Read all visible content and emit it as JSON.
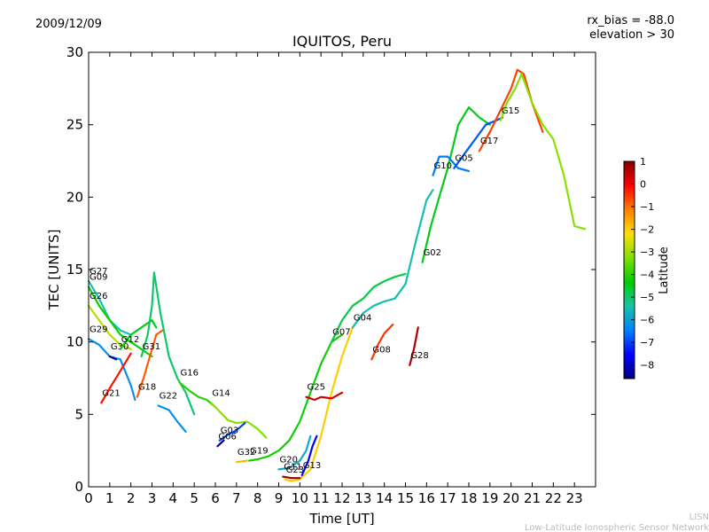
{
  "header": {
    "date": "2009/12/09",
    "rx_bias": "rx_bias = -88.0",
    "elevation": "elevation > 30"
  },
  "footer": {
    "line1": "LISN",
    "line2": "Low-Latitude Ionospheric Sensor Network"
  },
  "chart_data": {
    "type": "scatter",
    "title": "IQUITOS, Peru",
    "xlabel": "Time [UT]",
    "ylabel": "TEC [UNITS]",
    "xlim": [
      0,
      24
    ],
    "ylim": [
      0,
      30
    ],
    "xticks": [
      "0",
      "1",
      "2",
      "3",
      "4",
      "5",
      "6",
      "7",
      "8",
      "9",
      "10",
      "11",
      "12",
      "13",
      "14",
      "15",
      "16",
      "17",
      "18",
      "19",
      "20",
      "21",
      "22",
      "23"
    ],
    "yticks": [
      "0",
      "5",
      "10",
      "15",
      "20",
      "25",
      "30"
    ],
    "colorbar": {
      "label": "Latitude",
      "range": [
        -8.6,
        1.0
      ],
      "ticks": [
        "1",
        "0",
        "−1",
        "−2",
        "−3",
        "−4",
        "−5",
        "−6",
        "−7",
        "−8"
      ],
      "tick_values": [
        1,
        0,
        -1,
        -2,
        -3,
        -4,
        -5,
        -6,
        -7,
        -8
      ],
      "colors": [
        "#00007f",
        "#0000ff",
        "#0080ff",
        "#17c4a8",
        "#00cc00",
        "#7fe000",
        "#ffdd00",
        "#ff8000",
        "#ff0000",
        "#7f0000"
      ]
    },
    "series": [
      {
        "name": "G27",
        "lat": -5.5,
        "points": [
          [
            0,
            14.2
          ],
          [
            0.5,
            13
          ],
          [
            1,
            11.5
          ],
          [
            1.5,
            10.8
          ],
          [
            2,
            10.5
          ]
        ]
      },
      {
        "name": "G09",
        "lat": -4.2,
        "points": [
          [
            0,
            13.8
          ],
          [
            0.5,
            12.5
          ],
          [
            1,
            11.5
          ],
          [
            1.5,
            10.5
          ],
          [
            2,
            10
          ],
          [
            2.5,
            9.5
          ],
          [
            3,
            9
          ]
        ]
      },
      {
        "name": "G26",
        "lat": -2.8,
        "points": [
          [
            0,
            12.5
          ],
          [
            0.5,
            11.5
          ],
          [
            1,
            10.5
          ],
          [
            1.5,
            9.8
          ],
          [
            2,
            9.5
          ]
        ]
      },
      {
        "name": "G29",
        "lat": -6.2,
        "points": [
          [
            0,
            10.2
          ],
          [
            0.5,
            9.8
          ],
          [
            1,
            9
          ],
          [
            1.5,
            8.8
          ],
          [
            2,
            7
          ],
          [
            2.2,
            6
          ]
        ]
      },
      {
        "name": "G30",
        "lat": -8.3,
        "points": [
          [
            1,
            9
          ],
          [
            1.3,
            8.8
          ]
        ]
      },
      {
        "name": "G12",
        "lat": -4.5,
        "points": [
          [
            1.5,
            9.5
          ],
          [
            2,
            10.5
          ],
          [
            2.5,
            11
          ],
          [
            3,
            11.5
          ],
          [
            3.2,
            11
          ]
        ]
      },
      {
        "name": "G21",
        "lat": -0.2,
        "points": [
          [
            0.6,
            5.8
          ],
          [
            1,
            6.8
          ],
          [
            1.5,
            8
          ],
          [
            2,
            9.2
          ]
        ]
      },
      {
        "name": "G18",
        "lat": -0.8,
        "points": [
          [
            2.3,
            6.2
          ],
          [
            2.6,
            7.5
          ],
          [
            2.9,
            9
          ],
          [
            3.2,
            10.5
          ],
          [
            3.5,
            10.8
          ]
        ]
      },
      {
        "name": "G31",
        "lat": -5.0,
        "points": [
          [
            2.5,
            9
          ],
          [
            2.8,
            10.5
          ],
          [
            3,
            12.5
          ],
          [
            3.1,
            14.8
          ],
          [
            3.4,
            12
          ],
          [
            3.8,
            9
          ],
          [
            4.2,
            7.5
          ],
          [
            4.6,
            6.5
          ],
          [
            5,
            5
          ]
        ]
      },
      {
        "name": "G22",
        "lat": -6.2,
        "points": [
          [
            3.3,
            5.6
          ],
          [
            3.8,
            5.3
          ],
          [
            4.2,
            4.5
          ],
          [
            4.6,
            3.8
          ]
        ]
      },
      {
        "name": "G16",
        "lat": -4.0,
        "points": [
          [
            4.3,
            7.2
          ],
          [
            4.8,
            6.6
          ],
          [
            5.2,
            6.2
          ],
          [
            5.6,
            6
          ],
          [
            6,
            5.5
          ]
        ]
      },
      {
        "name": "G14",
        "lat": -3.2,
        "points": [
          [
            5.8,
            5.8
          ],
          [
            6.2,
            5.2
          ],
          [
            6.6,
            4.6
          ],
          [
            7,
            4.4
          ],
          [
            7.5,
            4.5
          ],
          [
            8,
            4
          ],
          [
            8.4,
            3.4
          ]
        ]
      },
      {
        "name": "G03",
        "lat": -7.0,
        "points": [
          [
            6.2,
            3.2
          ],
          [
            6.6,
            3.6
          ],
          [
            7,
            3.9
          ],
          [
            7.4,
            4.4
          ]
        ]
      },
      {
        "name": "G06",
        "lat": -8.2,
        "points": [
          [
            6.1,
            2.8
          ],
          [
            6.4,
            3.2
          ]
        ]
      },
      {
        "name": "G32",
        "lat": -1.8,
        "points": [
          [
            7,
            1.7
          ],
          [
            7.5,
            1.8
          ]
        ]
      },
      {
        "name": "G19",
        "lat": -4.2,
        "points": [
          [
            7.6,
            1.8
          ],
          [
            8,
            1.9
          ],
          [
            8.5,
            2.1
          ],
          [
            9,
            2.5
          ],
          [
            9.5,
            3.2
          ],
          [
            10,
            4.5
          ],
          [
            10.5,
            6.5
          ],
          [
            11,
            8.5
          ],
          [
            11.5,
            10
          ],
          [
            12,
            10.5
          ]
        ]
      },
      {
        "name": "G20",
        "lat": -5.8,
        "points": [
          [
            9,
            1.2
          ],
          [
            9.5,
            1.3
          ],
          [
            10,
            1.8
          ],
          [
            10.3,
            2.5
          ],
          [
            10.5,
            3.5
          ]
        ]
      },
      {
        "name": "G23",
        "lat": -2.0,
        "points": [
          [
            9.3,
            0.5
          ],
          [
            9.6,
            0.4
          ],
          [
            10,
            0.5
          ],
          [
            10.5,
            1.2
          ],
          [
            11,
            3.5
          ],
          [
            11.5,
            6.5
          ],
          [
            12,
            9
          ],
          [
            12.5,
            11
          ]
        ]
      },
      {
        "name": "G11",
        "lat": 0.8,
        "points": [
          [
            9.2,
            0.7
          ],
          [
            9.6,
            0.6
          ],
          [
            10,
            0.6
          ]
        ]
      },
      {
        "name": "G13",
        "lat": -7.5,
        "points": [
          [
            10.1,
            0.8
          ],
          [
            10.4,
            1.8
          ],
          [
            10.6,
            2.8
          ],
          [
            10.8,
            3.5
          ]
        ]
      },
      {
        "name": "G25",
        "lat": 0.3,
        "points": [
          [
            10.3,
            6.2
          ],
          [
            10.7,
            6
          ],
          [
            11,
            6.2
          ],
          [
            11.5,
            6.1
          ],
          [
            12,
            6.5
          ]
        ]
      },
      {
        "name": "G08",
        "lat": -0.5,
        "points": [
          [
            13.4,
            8.8
          ],
          [
            13.7,
            9.8
          ],
          [
            14,
            10.6
          ],
          [
            14.4,
            11.2
          ]
        ]
      },
      {
        "name": "G07",
        "lat": -4.8,
        "points": [
          [
            11.5,
            10
          ],
          [
            12,
            11.5
          ],
          [
            12.5,
            12.5
          ],
          [
            13,
            13
          ],
          [
            13.5,
            13.8
          ],
          [
            14,
            14.2
          ],
          [
            14.5,
            14.5
          ],
          [
            15,
            14.7
          ]
        ]
      },
      {
        "name": "G04",
        "lat": -5.5,
        "points": [
          [
            12.5,
            11
          ],
          [
            13,
            12
          ],
          [
            13.5,
            12.5
          ],
          [
            14,
            12.8
          ],
          [
            14.5,
            13
          ],
          [
            15,
            14
          ],
          [
            15.5,
            17
          ],
          [
            16,
            19.8
          ],
          [
            16.3,
            20.5
          ]
        ]
      },
      {
        "name": "G28",
        "lat": 0.6,
        "points": [
          [
            15.2,
            8.4
          ],
          [
            15.4,
            9.5
          ],
          [
            15.6,
            11
          ]
        ]
      },
      {
        "name": "G02",
        "lat": -4.5,
        "points": [
          [
            15.8,
            15.5
          ],
          [
            16.2,
            18
          ],
          [
            16.6,
            20
          ],
          [
            17,
            22
          ],
          [
            17.5,
            25
          ],
          [
            18,
            26.2
          ],
          [
            18.5,
            25.5
          ],
          [
            19,
            25
          ]
        ]
      },
      {
        "name": "G10",
        "lat": -6.5,
        "points": [
          [
            16.3,
            21.5
          ],
          [
            16.6,
            22.8
          ],
          [
            17,
            22.8
          ],
          [
            17.5,
            22
          ],
          [
            18,
            21.8
          ]
        ]
      },
      {
        "name": "G05",
        "lat": -6.8,
        "points": [
          [
            17.3,
            22
          ],
          [
            17.8,
            23
          ],
          [
            18.3,
            24
          ],
          [
            18.8,
            25
          ],
          [
            19.3,
            25.3
          ],
          [
            19.6,
            25.5
          ]
        ]
      },
      {
        "name": "G17",
        "lat": -0.6,
        "points": [
          [
            18.5,
            23.2
          ],
          [
            19,
            24.5
          ],
          [
            19.5,
            26
          ],
          [
            20,
            27.5
          ],
          [
            20.3,
            28.8
          ],
          [
            20.6,
            28.5
          ],
          [
            21,
            26.5
          ],
          [
            21.5,
            24.5
          ]
        ]
      },
      {
        "name": "G15",
        "lat": -3.2,
        "points": [
          [
            19.5,
            25.3
          ],
          [
            19.8,
            26.5
          ],
          [
            20.2,
            27.5
          ],
          [
            20.5,
            28.5
          ],
          [
            21,
            26.5
          ],
          [
            21.5,
            25
          ],
          [
            22,
            24
          ],
          [
            22.5,
            21.5
          ],
          [
            23,
            18
          ],
          [
            23.5,
            17.8
          ]
        ]
      }
    ]
  }
}
